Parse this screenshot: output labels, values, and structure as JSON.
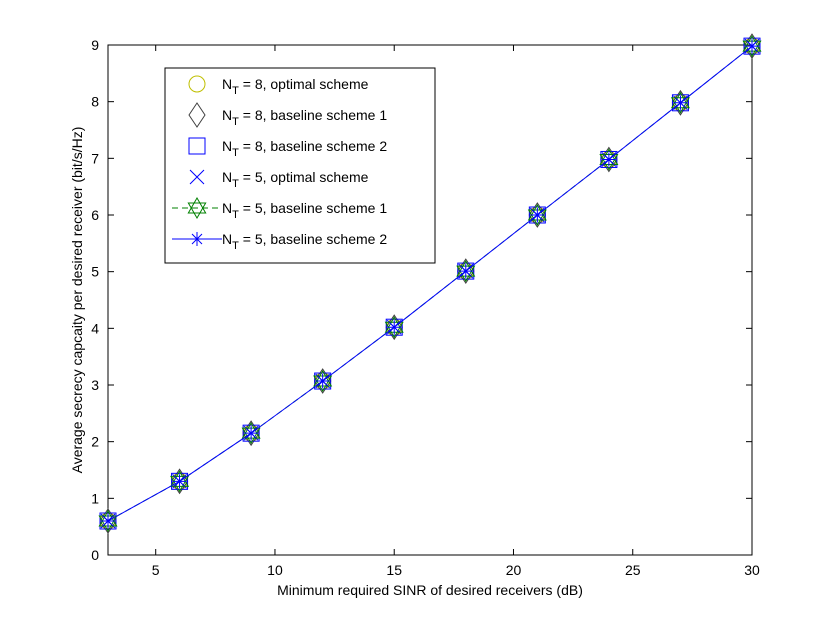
{
  "chart_data": {
    "type": "line",
    "title": "",
    "xlabel": "Minimum required SINR of desired receivers (dB)",
    "ylabel": "Average secrecy capcaity per desired receiver (bit/s/Hz)",
    "xlim": [
      3,
      30
    ],
    "ylim": [
      0,
      9
    ],
    "xticks": [
      5,
      10,
      15,
      20,
      25,
      30
    ],
    "yticks": [
      0,
      1,
      2,
      3,
      4,
      5,
      6,
      7,
      8,
      9
    ],
    "grid": false,
    "legend_position": "top-left",
    "x": [
      3,
      6,
      9,
      12,
      15,
      18,
      21,
      24,
      27,
      30
    ],
    "series": [
      {
        "name": "N_T = 8, optimal scheme",
        "legend_main": "N",
        "legend_sub": "T",
        "legend_rest": " = 8, optimal scheme",
        "marker": "circle",
        "color": "#bfbf00",
        "line": false,
        "values": [
          0.6,
          1.3,
          2.15,
          3.07,
          4.02,
          5.01,
          6.0,
          6.98,
          7.98,
          8.98
        ]
      },
      {
        "name": "N_T = 8, baseline scheme 1",
        "legend_main": "N",
        "legend_sub": "T",
        "legend_rest": " = 8, baseline scheme 1",
        "marker": "diamond",
        "color": "#404040",
        "line": false,
        "values": [
          0.6,
          1.3,
          2.15,
          3.07,
          4.02,
          5.01,
          6.0,
          6.98,
          7.98,
          8.98
        ]
      },
      {
        "name": "N_T = 8, baseline scheme 2",
        "legend_main": "N",
        "legend_sub": "T",
        "legend_rest": " = 8, baseline scheme 2",
        "marker": "square",
        "color": "#0000ff",
        "line": false,
        "values": [
          0.6,
          1.3,
          2.15,
          3.07,
          4.02,
          5.01,
          6.0,
          6.98,
          7.98,
          8.98
        ]
      },
      {
        "name": "N_T = 5, optimal scheme",
        "legend_main": "N",
        "legend_sub": "T",
        "legend_rest": " = 5, optimal scheme",
        "marker": "x",
        "color": "#0000ff",
        "line": false,
        "values": [
          0.6,
          1.3,
          2.15,
          3.07,
          4.02,
          5.01,
          6.0,
          6.98,
          7.98,
          8.98
        ]
      },
      {
        "name": "N_T = 5, baseline scheme 1",
        "legend_main": "N",
        "legend_sub": "T",
        "legend_rest": " = 5, baseline scheme 1",
        "marker": "hexagram",
        "color": "#008000",
        "line": true,
        "dash": true,
        "values": [
          0.6,
          1.3,
          2.15,
          3.07,
          4.02,
          5.01,
          6.0,
          6.98,
          7.98,
          8.98
        ]
      },
      {
        "name": "N_T = 5, baseline scheme 2",
        "legend_main": "N",
        "legend_sub": "T",
        "legend_rest": " = 5, baseline scheme 2",
        "marker": "asterisk",
        "color": "#0000ff",
        "line": true,
        "dash": false,
        "values": [
          0.6,
          1.3,
          2.15,
          3.07,
          4.02,
          5.01,
          6.0,
          6.98,
          7.98,
          8.98
        ]
      }
    ]
  }
}
